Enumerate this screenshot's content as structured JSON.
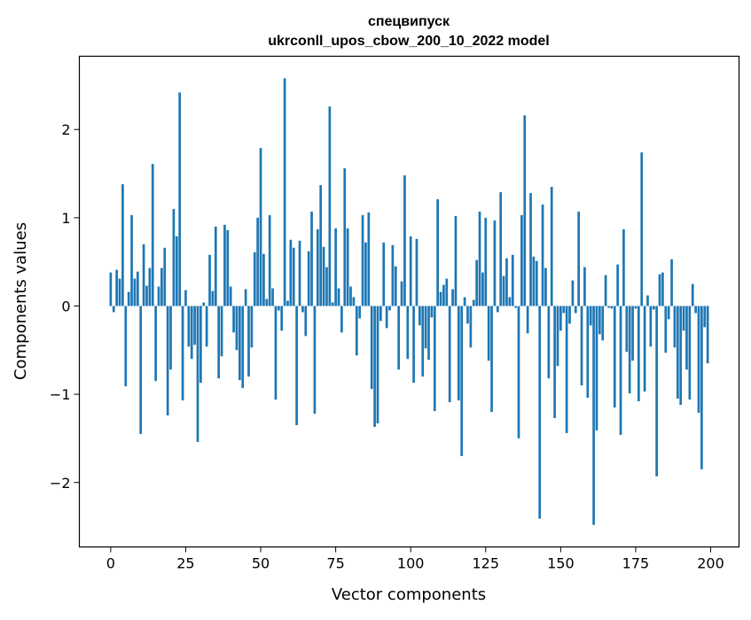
{
  "chart_data": {
    "type": "bar",
    "title_line1": "спецвипуск",
    "title_line2": "ukrconll_upos_cbow_200_10_2022 model",
    "xlabel": "Vector components",
    "ylabel": "Components values",
    "xlim": [
      -10.45,
      209.45
    ],
    "ylim": [
      -2.73,
      2.83
    ],
    "xticks": [
      0,
      25,
      50,
      75,
      100,
      125,
      150,
      175,
      200
    ],
    "xtick_labels": [
      "0",
      "25",
      "50",
      "75",
      "100",
      "125",
      "150",
      "175",
      "200"
    ],
    "yticks": [
      -2,
      -1,
      0,
      1,
      2
    ],
    "ytick_labels": [
      "−2",
      "−1",
      "0",
      "1",
      "2"
    ],
    "bar_color": "#1f77b4",
    "grid": false,
    "values": [
      0.38,
      -0.07,
      0.41,
      0.31,
      1.38,
      -0.91,
      0.16,
      1.03,
      0.31,
      0.39,
      -1.45,
      0.7,
      0.23,
      0.43,
      1.61,
      -0.85,
      0.22,
      0.43,
      0.66,
      -1.24,
      -0.72,
      1.1,
      0.79,
      2.42,
      -1.07,
      0.18,
      -0.46,
      -0.6,
      -0.44,
      -1.54,
      -0.87,
      0.04,
      -0.46,
      0.58,
      0.17,
      0.9,
      -0.82,
      -0.57,
      0.92,
      0.86,
      0.22,
      -0.3,
      -0.5,
      -0.84,
      -0.93,
      0.19,
      -0.8,
      -0.47,
      0.61,
      1.0,
      1.79,
      0.59,
      0.08,
      1.03,
      0.2,
      -1.06,
      -0.05,
      -0.28,
      2.58,
      0.06,
      0.75,
      0.66,
      -1.35,
      0.74,
      -0.07,
      -0.34,
      0.62,
      1.07,
      -1.22,
      0.87,
      1.37,
      0.67,
      0.44,
      2.26,
      0.04,
      0.88,
      0.2,
      -0.3,
      1.56,
      0.88,
      0.22,
      0.1,
      -0.56,
      -0.14,
      1.03,
      0.72,
      1.06,
      -0.94,
      -1.37,
      -1.33,
      -0.17,
      0.72,
      -0.25,
      -0.05,
      0.69,
      0.45,
      -0.72,
      0.28,
      1.48,
      -0.6,
      0.79,
      -0.87,
      0.76,
      -0.22,
      -0.8,
      -0.48,
      -0.61,
      -0.13,
      -1.19,
      1.21,
      0.16,
      0.24,
      0.31,
      -1.09,
      0.19,
      1.02,
      -1.07,
      -1.7,
      0.1,
      -0.2,
      -0.47,
      0.07,
      0.52,
      1.07,
      0.38,
      1.0,
      -0.62,
      -1.2,
      0.97,
      -0.07,
      1.29,
      0.34,
      0.54,
      0.1,
      0.58,
      -0.02,
      -1.5,
      1.03,
      2.16,
      -0.31,
      1.28,
      0.56,
      0.51,
      -2.41,
      1.15,
      0.43,
      -0.82,
      1.35,
      -1.27,
      -0.68,
      -0.28,
      -0.08,
      -1.44,
      -0.2,
      0.29,
      -0.08,
      1.07,
      -0.9,
      0.44,
      -1.04,
      -0.22,
      -2.48,
      -1.41,
      -0.32,
      -0.39,
      0.35,
      -0.02,
      -0.03,
      -1.15,
      0.47,
      -1.46,
      0.87,
      -0.52,
      -0.99,
      -0.62,
      -0.03,
      -1.08,
      1.74,
      -0.97,
      0.12,
      -0.46,
      -0.04,
      -1.93,
      0.36,
      0.38,
      -0.53,
      -0.15,
      0.53,
      -0.47,
      -1.05,
      -1.12,
      -0.28,
      -0.72,
      -1.06,
      0.25,
      -0.08,
      -1.21,
      -1.85,
      -0.24,
      -0.65
    ]
  }
}
